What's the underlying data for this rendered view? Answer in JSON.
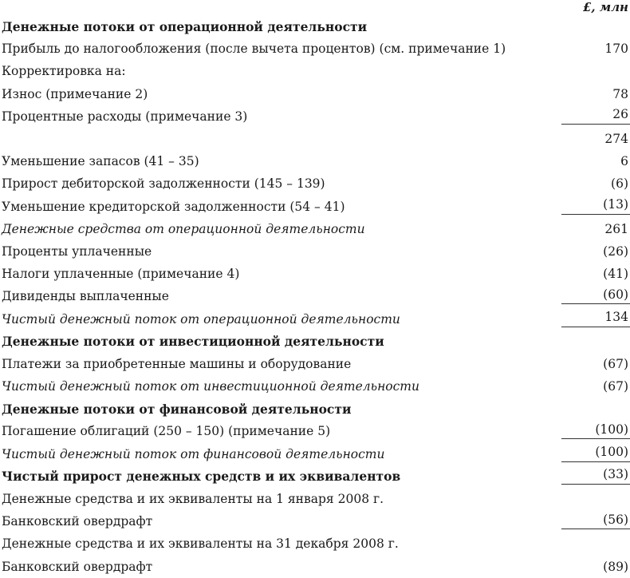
{
  "unit_header": "£, млн",
  "rows": [
    {
      "label": "Денежные потоки от операционной деятельности",
      "value": "",
      "style": "bold"
    },
    {
      "label": "Прибыль до налогообложения (после вычета процентов) (см. примечание 1)",
      "value": "170"
    },
    {
      "label": "Корректировка на:",
      "value": ""
    },
    {
      "label": "Износ (примечание 2)",
      "value": "78"
    },
    {
      "label": "Процентные расходы (примечание 3)",
      "value": "26",
      "underline": true
    },
    {
      "label": "",
      "value": "274"
    },
    {
      "label": "Уменьшение запасов (41 – 35)",
      "value": "6"
    },
    {
      "label": "Прирост дебиторской задолженности (145 – 139)",
      "value": "(6)"
    },
    {
      "label": "Уменьшение кредиторской задолженности (54 – 41)",
      "value": "(13)",
      "underline": true
    },
    {
      "label": "Денежные средства от операционной деятельности",
      "value": "261",
      "style": "italic"
    },
    {
      "label": "Проценты уплаченные",
      "value": "(26)"
    },
    {
      "label": "Налоги уплаченные (примечание 4)",
      "value": "(41)"
    },
    {
      "label": "Дивиденды выплаченные",
      "value": "(60)",
      "underline": true
    },
    {
      "label": "Чистый денежный поток от операционной деятельности",
      "value": "134",
      "style": "italic",
      "underline": true
    },
    {
      "label": "Денежные потоки от инвестиционной деятельности",
      "value": "",
      "style": "bold"
    },
    {
      "label": "Платежи за приобретенные машины и оборудование",
      "value": "(67)"
    },
    {
      "label": "Чистый денежный поток от инвестиционной деятельности",
      "value": "(67)",
      "style": "italic"
    },
    {
      "label": "Денежные потоки от финансовой деятельности",
      "value": "",
      "style": "bold"
    },
    {
      "label": "Погашение облигаций (250 – 150) (примечание 5)",
      "value": "(100)",
      "underline": true
    },
    {
      "label": "Чистый денежный поток от финансовой деятельности",
      "value": "(100)",
      "style": "italic",
      "underline": true
    },
    {
      "label": "Чистый прирост денежных средств и их эквивалентов",
      "value": "(33)",
      "style": "bold",
      "underline": true
    },
    {
      "label": "Денежные средства и их эквиваленты на 1 января 2008 г.",
      "value": ""
    },
    {
      "label": "Банковский овердрафт",
      "value": "(56)",
      "underline": true
    },
    {
      "label": "Денежные средства и их эквиваленты на 31 декабря 2008 г.",
      "value": ""
    },
    {
      "label": "Банковский овердрафт",
      "value": "(89)"
    }
  ]
}
